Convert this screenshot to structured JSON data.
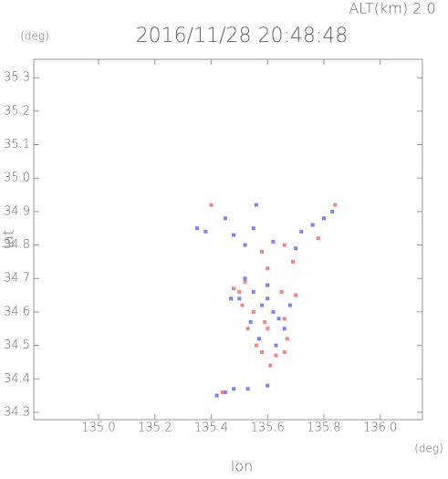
{
  "chart_data": {
    "type": "scatter",
    "title": "2016/11/28 20:48:48",
    "subtitle": "ALT(km) 2.0",
    "y_unit": "(deg)",
    "x_unit": "(deg)",
    "xlabel": "lon",
    "ylabel": "lat",
    "xlim": [
      134.77,
      136.15
    ],
    "ylim": [
      34.278,
      35.355
    ],
    "xticks": [
      {
        "value": 135,
        "label": "135.0"
      },
      135.2,
      135.4,
      135.6,
      135.8,
      {
        "value": 136,
        "label": "136.0"
      }
    ],
    "yticks": [
      34.3,
      34.4,
      34.5,
      34.6,
      34.7,
      34.8,
      34.9,
      {
        "value": 35,
        "label": "35.0"
      },
      35.1,
      35.2,
      35.3
    ],
    "grid": false,
    "series": [
      {
        "color": "#6a6af0",
        "x": [
          135.35,
          135.38,
          135.45,
          135.48,
          135.52,
          135.55,
          135.62,
          135.7,
          135.76,
          135.8,
          135.83,
          135.56,
          135.52,
          135.55,
          135.6,
          135.62,
          135.64,
          135.58,
          135.66,
          135.54,
          135.5,
          135.57,
          135.6,
          135.68,
          135.63,
          135.42,
          135.45,
          135.48,
          135.53,
          135.6,
          135.47,
          135.72
        ],
        "values": [
          34.85,
          34.84,
          34.88,
          34.83,
          34.8,
          34.85,
          34.81,
          34.79,
          34.86,
          34.88,
          34.9,
          34.92,
          34.7,
          34.66,
          34.64,
          34.6,
          34.58,
          34.62,
          34.55,
          34.57,
          34.64,
          34.52,
          34.68,
          34.62,
          34.5,
          34.35,
          34.36,
          34.37,
          34.37,
          34.38,
          34.64,
          34.84
        ]
      },
      {
        "color": "#f07070",
        "x": [
          135.4,
          135.58,
          135.66,
          135.69,
          135.78,
          135.84,
          135.6,
          135.48,
          135.51,
          135.55,
          135.6,
          135.65,
          135.7,
          135.58,
          135.63,
          135.66,
          135.56,
          135.53,
          135.61,
          135.5,
          135.44,
          135.66,
          135.67,
          135.52,
          135.59
        ],
        "values": [
          34.92,
          34.78,
          34.8,
          34.75,
          34.82,
          34.92,
          34.73,
          34.67,
          34.62,
          34.6,
          34.55,
          34.66,
          34.65,
          34.48,
          34.47,
          34.48,
          34.5,
          34.55,
          34.44,
          34.66,
          34.36,
          34.58,
          34.52,
          34.69,
          34.57
        ]
      }
    ]
  }
}
